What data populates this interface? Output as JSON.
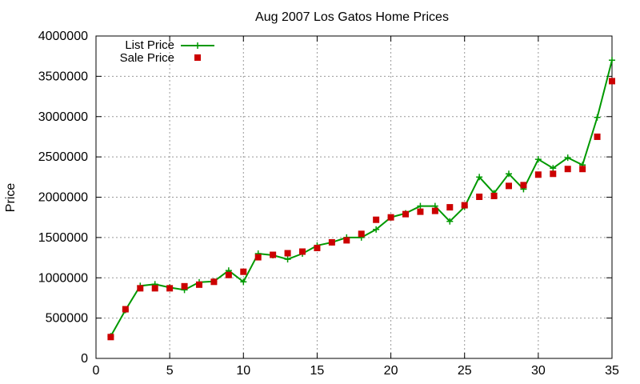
{
  "chart_data": {
    "type": "line",
    "title": "Aug 2007 Los Gatos Home Prices",
    "xlabel": "",
    "ylabel": "Price",
    "xlim": [
      0,
      35
    ],
    "ylim": [
      0,
      4000000
    ],
    "x_ticks": [
      "0",
      "5",
      "10",
      "15",
      "20",
      "25",
      "30",
      "35"
    ],
    "y_ticks": [
      "0",
      "500000",
      "1000000",
      "1500000",
      "2000000",
      "2500000",
      "3000000",
      "3500000",
      "4000000"
    ],
    "grid": true,
    "legend_position": "top-left",
    "x": [
      1,
      2,
      3,
      4,
      5,
      6,
      7,
      8,
      9,
      10,
      11,
      12,
      13,
      14,
      15,
      16,
      17,
      18,
      19,
      20,
      21,
      22,
      23,
      24,
      25,
      26,
      27,
      28,
      29,
      30,
      31,
      32,
      33,
      34,
      35
    ],
    "series": [
      {
        "name": "List Price",
        "kind": "line-with-plus-markers",
        "color": "#009900",
        "values": [
          275000,
          600000,
          900000,
          920000,
          880000,
          850000,
          945000,
          955000,
          1090000,
          950000,
          1300000,
          1280000,
          1230000,
          1300000,
          1400000,
          1440000,
          1500000,
          1500000,
          1600000,
          1750000,
          1800000,
          1890000,
          1890000,
          1700000,
          1880000,
          2250000,
          2050000,
          2290000,
          2100000,
          2470000,
          2360000,
          2490000,
          2400000,
          2990000,
          3700000
        ]
      },
      {
        "name": "Sale Price",
        "kind": "square-markers",
        "color": "#cc0000",
        "values": [
          265000,
          610000,
          870000,
          870000,
          870000,
          895000,
          915000,
          950000,
          1035000,
          1075000,
          1255000,
          1285000,
          1305000,
          1325000,
          1370000,
          1440000,
          1465000,
          1545000,
          1720000,
          1750000,
          1790000,
          1820000,
          1830000,
          1875000,
          1900000,
          2005000,
          2015000,
          2140000,
          2150000,
          2280000,
          2290000,
          2350000,
          2350000,
          2750000,
          3440000
        ]
      }
    ]
  }
}
